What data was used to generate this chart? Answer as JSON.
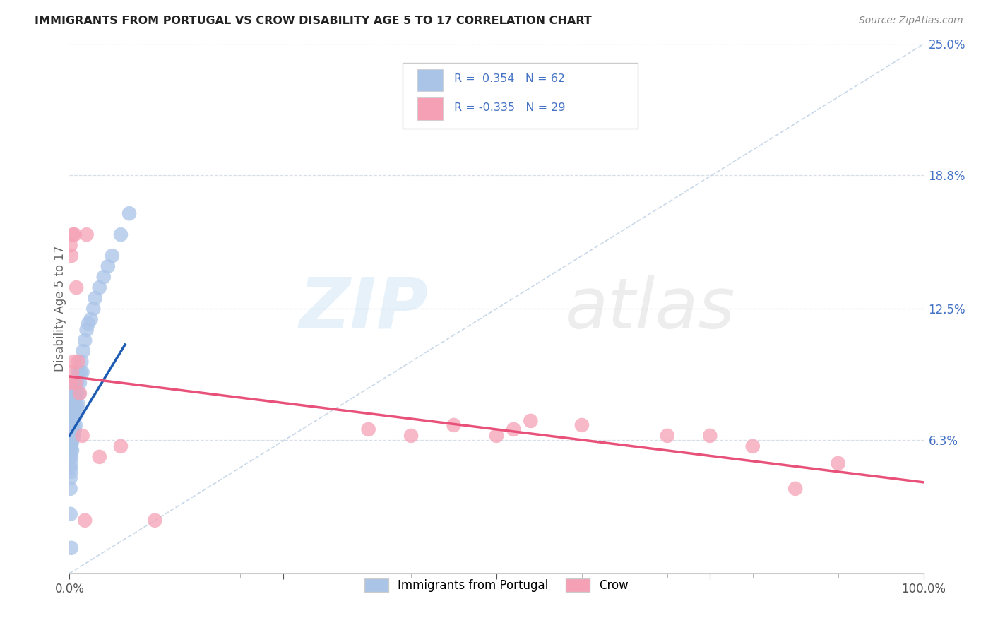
{
  "title": "IMMIGRANTS FROM PORTUGAL VS CROW DISABILITY AGE 5 TO 17 CORRELATION CHART",
  "source": "Source: ZipAtlas.com",
  "ylabel": "Disability Age 5 to 17",
  "xlim": [
    0,
    1.0
  ],
  "ylim": [
    0,
    0.25
  ],
  "ytick_right_labels": [
    "",
    "6.3%",
    "12.5%",
    "18.8%",
    "25.0%"
  ],
  "ytick_right_vals": [
    0.0,
    0.063,
    0.125,
    0.188,
    0.25
  ],
  "legend_label1": "Immigrants from Portugal",
  "legend_label2": "Crow",
  "R1": 0.354,
  "N1": 62,
  "R2": -0.335,
  "N2": 29,
  "color_blue": "#aac4e8",
  "color_pink": "#f5a0b5",
  "line_color_blue": "#1e5cb3",
  "line_color_pink": "#e8527a",
  "ref_line_color": "#c8d8e8",
  "blue_x": [
    0.001,
    0.001,
    0.001,
    0.001,
    0.001,
    0.001,
    0.001,
    0.001,
    0.001,
    0.001,
    0.002,
    0.002,
    0.002,
    0.002,
    0.002,
    0.002,
    0.002,
    0.003,
    0.003,
    0.003,
    0.003,
    0.003,
    0.004,
    0.004,
    0.004,
    0.004,
    0.005,
    0.005,
    0.005,
    0.005,
    0.006,
    0.006,
    0.006,
    0.007,
    0.007,
    0.007,
    0.008,
    0.008,
    0.009,
    0.009,
    0.01,
    0.01,
    0.011,
    0.012,
    0.013,
    0.014,
    0.015,
    0.016,
    0.018,
    0.02,
    0.022,
    0.025,
    0.028,
    0.03,
    0.035,
    0.04,
    0.045,
    0.05,
    0.06,
    0.07,
    0.001,
    0.002
  ],
  "blue_y": [
    0.05,
    0.055,
    0.058,
    0.06,
    0.062,
    0.065,
    0.068,
    0.07,
    0.045,
    0.04,
    0.048,
    0.052,
    0.055,
    0.06,
    0.065,
    0.068,
    0.072,
    0.058,
    0.062,
    0.068,
    0.072,
    0.078,
    0.065,
    0.07,
    0.08,
    0.085,
    0.065,
    0.072,
    0.078,
    0.088,
    0.068,
    0.075,
    0.082,
    0.07,
    0.08,
    0.09,
    0.075,
    0.085,
    0.078,
    0.09,
    0.08,
    0.095,
    0.085,
    0.09,
    0.095,
    0.1,
    0.095,
    0.105,
    0.11,
    0.115,
    0.118,
    0.12,
    0.125,
    0.13,
    0.135,
    0.14,
    0.145,
    0.15,
    0.16,
    0.17,
    0.028,
    0.012
  ],
  "pink_x": [
    0.001,
    0.001,
    0.002,
    0.003,
    0.004,
    0.005,
    0.006,
    0.007,
    0.008,
    0.01,
    0.012,
    0.015,
    0.018,
    0.02,
    0.035,
    0.06,
    0.1,
    0.35,
    0.4,
    0.45,
    0.5,
    0.52,
    0.54,
    0.6,
    0.7,
    0.75,
    0.8,
    0.85,
    0.9
  ],
  "pink_y": [
    0.09,
    0.155,
    0.15,
    0.095,
    0.16,
    0.1,
    0.16,
    0.09,
    0.135,
    0.1,
    0.085,
    0.065,
    0.025,
    0.16,
    0.055,
    0.06,
    0.025,
    0.068,
    0.065,
    0.07,
    0.065,
    0.068,
    0.072,
    0.07,
    0.065,
    0.065,
    0.06,
    0.04,
    0.052
  ],
  "blue_line_x": [
    0.0,
    0.065
  ],
  "blue_line_y_start": 0.065,
  "blue_line_y_end": 0.108,
  "pink_line_x": [
    0.0,
    1.0
  ],
  "pink_line_y_start": 0.093,
  "pink_line_y_end": 0.043,
  "ref_line_x": [
    0.0,
    1.0
  ],
  "ref_line_y": [
    0.0,
    0.25
  ]
}
